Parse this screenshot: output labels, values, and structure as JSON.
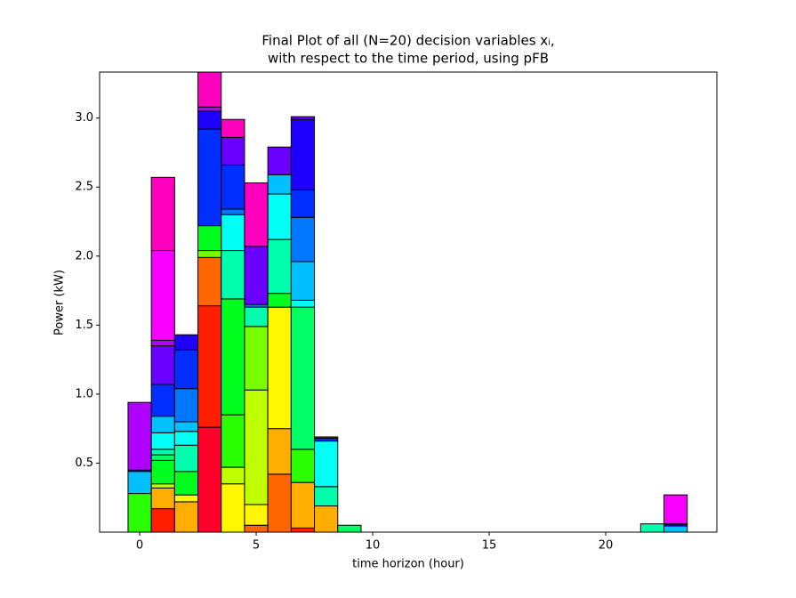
{
  "chart_data": {
    "type": "stacked_bar",
    "title": [
      "Final Plot of all (N=20) decision variables xᵢ,",
      "with respect to the time period, using pFB"
    ],
    "xlabel": "time horizon (hour)",
    "ylabel": "Power (kW)",
    "x": [
      0,
      1,
      2,
      3,
      4,
      5,
      6,
      7,
      8,
      9,
      10,
      11,
      12,
      13,
      14,
      15,
      16,
      17,
      18,
      19,
      20,
      21,
      22,
      23
    ],
    "xlim": [
      -1.72,
      24.77
    ],
    "xticks": [
      0,
      5,
      10,
      15,
      20
    ],
    "ylim": [
      0,
      3.333
    ],
    "yticks": [
      0.5,
      {
        "value": 1,
        "label": "1.0"
      },
      1.5,
      {
        "value": 2,
        "label": "2.0"
      },
      2.5,
      {
        "value": 3,
        "label": "3.0"
      }
    ],
    "series": [
      {
        "color": "#ff002a",
        "values": [
          0,
          0,
          0,
          0.76,
          0,
          0,
          0,
          0,
          0,
          0,
          0,
          0,
          0,
          0,
          0,
          0,
          0,
          0,
          0,
          0,
          0,
          0,
          0,
          0
        ]
      },
      {
        "color": "#ff1e00",
        "values": [
          0,
          0.17,
          0,
          0.88,
          0,
          0,
          0,
          0.03,
          0,
          0,
          0,
          0,
          0,
          0,
          0,
          0,
          0,
          0,
          0,
          0,
          0,
          0,
          0,
          0
        ]
      },
      {
        "color": "#ff6600",
        "values": [
          0,
          0,
          0,
          0.35,
          0,
          0.05,
          0.42,
          0,
          0,
          0,
          0,
          0,
          0,
          0,
          0,
          0,
          0,
          0,
          0,
          0,
          0,
          0,
          0,
          0
        ]
      },
      {
        "color": "#ffae00",
        "values": [
          0,
          0.15,
          0.22,
          0,
          0,
          0,
          0.33,
          0.33,
          0.19,
          0,
          0,
          0,
          0,
          0,
          0,
          0,
          0,
          0,
          0,
          0,
          0,
          0,
          0,
          0
        ]
      },
      {
        "color": "#fff700",
        "values": [
          0,
          0,
          0.05,
          0,
          0.35,
          0.15,
          0.88,
          0,
          0,
          0,
          0,
          0,
          0,
          0,
          0,
          0,
          0,
          0,
          0,
          0,
          0,
          0,
          0,
          0
        ]
      },
      {
        "color": "#c0ff00",
        "values": [
          0,
          0.03,
          0,
          0,
          0.12,
          0.83,
          0,
          0,
          0,
          0,
          0,
          0,
          0,
          0,
          0,
          0,
          0,
          0,
          0,
          0,
          0,
          0,
          0,
          0
        ]
      },
      {
        "color": "#77ff00",
        "values": [
          0,
          0,
          0,
          0.05,
          0,
          0.46,
          0,
          0,
          0,
          0,
          0,
          0,
          0,
          0,
          0,
          0,
          0,
          0,
          0,
          0,
          0,
          0,
          0,
          0
        ]
      },
      {
        "color": "#2aff00",
        "values": [
          0.28,
          0,
          0,
          0,
          0.38,
          0,
          0,
          0.24,
          0,
          0,
          0,
          0,
          0,
          0,
          0,
          0,
          0,
          0,
          0,
          0,
          0,
          0,
          0,
          0
        ]
      },
      {
        "color": "#00ff1e",
        "values": [
          0,
          0.17,
          0.17,
          0.18,
          0.84,
          0,
          0.1,
          0,
          0,
          0,
          0,
          0,
          0,
          0,
          0,
          0,
          0,
          0,
          0,
          0,
          0,
          0,
          0,
          0
        ]
      },
      {
        "color": "#00ff66",
        "values": [
          0,
          0.04,
          0,
          0,
          0,
          0,
          0,
          1.03,
          0,
          0.05,
          0,
          0,
          0,
          0,
          0,
          0,
          0,
          0,
          0,
          0,
          0,
          0,
          0,
          0
        ]
      },
      {
        "color": "#00ffad",
        "values": [
          0,
          0.04,
          0.19,
          0,
          0.35,
          0.14,
          0.39,
          0,
          0.14,
          0,
          0,
          0,
          0,
          0,
          0,
          0,
          0,
          0,
          0,
          0,
          0,
          0,
          0.06,
          0
        ]
      },
      {
        "color": "#00fff5",
        "values": [
          0,
          0.12,
          0.1,
          0,
          0.26,
          0,
          0.33,
          0.05,
          0.33,
          0,
          0,
          0,
          0,
          0,
          0,
          0,
          0,
          0,
          0,
          0,
          0,
          0,
          0,
          0
        ]
      },
      {
        "color": "#00c0ff",
        "values": [
          0.16,
          0.12,
          0.07,
          0,
          0,
          0,
          0.14,
          0.28,
          0,
          0,
          0,
          0,
          0,
          0,
          0,
          0,
          0,
          0,
          0,
          0,
          0,
          0,
          0,
          0.045
        ]
      },
      {
        "color": "#0077ff",
        "values": [
          0,
          0,
          0.24,
          0,
          0.04,
          0.02,
          0,
          0.32,
          0,
          0,
          0,
          0,
          0,
          0,
          0,
          0,
          0,
          0,
          0,
          0,
          0,
          0,
          0,
          0
        ]
      },
      {
        "color": "#002eff",
        "values": [
          0,
          0.23,
          0.28,
          0.7,
          0.32,
          0,
          0,
          0.2,
          0.02,
          0,
          0,
          0,
          0,
          0,
          0,
          0,
          0,
          0,
          0,
          0,
          0,
          0,
          0,
          0
        ]
      },
      {
        "color": "#1e00ff",
        "values": [
          0,
          0,
          0.11,
          0.13,
          0,
          0,
          0,
          0.51,
          0,
          0,
          0,
          0,
          0,
          0,
          0,
          0,
          0,
          0,
          0,
          0,
          0,
          0,
          0,
          0.015
        ]
      },
      {
        "color": "#6a00ff",
        "values": [
          0.01,
          0.28,
          0,
          0,
          0.2,
          0.42,
          0.2,
          0.02,
          0.01,
          0,
          0,
          0,
          0,
          0,
          0,
          0,
          0,
          0,
          0,
          0,
          0,
          0,
          0,
          0
        ]
      },
      {
        "color": "#b000ff",
        "values": [
          0.49,
          0.04,
          0,
          0.03,
          0,
          0,
          0,
          0,
          0,
          0,
          0,
          0,
          0,
          0,
          0,
          0,
          0,
          0,
          0,
          0,
          0,
          0,
          0,
          0
        ]
      },
      {
        "color": "#f800ff",
        "values": [
          0,
          0.65,
          0,
          0,
          0,
          0,
          0,
          0,
          0,
          0,
          0,
          0,
          0,
          0,
          0,
          0,
          0,
          0,
          0,
          0,
          0,
          0,
          0,
          0.21
        ]
      },
      {
        "color": "#ff00bf",
        "values": [
          0,
          0.53,
          0,
          0.4,
          0.13,
          0.46,
          0,
          0,
          0,
          0,
          0,
          0,
          0,
          0,
          0,
          0,
          0,
          0,
          0,
          0,
          0,
          0,
          0,
          0
        ]
      }
    ]
  }
}
